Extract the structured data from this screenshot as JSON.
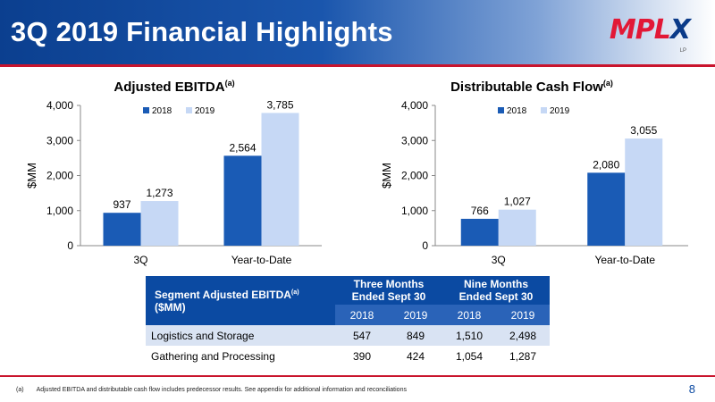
{
  "header": {
    "title": "3Q 2019 Financial Highlights",
    "logo_text_red": "MPL",
    "logo_text_blue": "X",
    "logo_sub": "LP"
  },
  "colors": {
    "series_2018": "#1a5bb5",
    "series_2019": "#c6d8f5",
    "accent_red": "#c9142d",
    "header_blue": "#0b3f8f"
  },
  "chart_data": [
    {
      "type": "bar",
      "title": "Adjusted EBITDA",
      "title_sup": "(a)",
      "ylabel": "$MM",
      "xlabel": "",
      "ylim": [
        0,
        4000
      ],
      "yticks": [
        "0",
        "1,000",
        "2,000",
        "3,000",
        "4,000"
      ],
      "ytick_values": [
        0,
        1000,
        2000,
        3000,
        4000
      ],
      "categories": [
        "3Q",
        "Year-to-Date"
      ],
      "legend_position": "top-left",
      "grid": false,
      "series": [
        {
          "name": "2018",
          "values": [
            937,
            2564
          ],
          "labels": [
            "937",
            "2,564"
          ]
        },
        {
          "name": "2019",
          "values": [
            1273,
            3785
          ],
          "labels": [
            "1,273",
            "3,785"
          ]
        }
      ]
    },
    {
      "type": "bar",
      "title": "Distributable Cash Flow",
      "title_sup": "(a)",
      "ylabel": "$MM",
      "xlabel": "",
      "ylim": [
        0,
        4000
      ],
      "yticks": [
        "0",
        "1,000",
        "2,000",
        "3,000",
        "4,000"
      ],
      "ytick_values": [
        0,
        1000,
        2000,
        3000,
        4000
      ],
      "categories": [
        "3Q",
        "Year-to-Date"
      ],
      "legend_position": "top-left",
      "grid": false,
      "series": [
        {
          "name": "2018",
          "values": [
            766,
            2080
          ],
          "labels": [
            "766",
            "2,080"
          ]
        },
        {
          "name": "2019",
          "values": [
            1027,
            3055
          ],
          "labels": [
            "1,027",
            "3,055"
          ]
        }
      ]
    }
  ],
  "table": {
    "title": "Segment Adjusted EBITDA",
    "title_sup": "(a)",
    "title_suffix": " ($MM)",
    "group_headers": [
      "Three Months Ended Sept 30",
      "Nine Months Ended Sept 30"
    ],
    "years": [
      "2018",
      "2019",
      "2018",
      "2019"
    ],
    "rows": [
      {
        "label": "Logistics and Storage",
        "values": [
          "547",
          "849",
          "1,510",
          "2,498"
        ]
      },
      {
        "label": "Gathering and Processing",
        "values": [
          "390",
          "424",
          "1,054",
          "1,287"
        ]
      }
    ]
  },
  "footer": {
    "mark": "(a)",
    "note": "Adjusted EBITDA and distributable cash flow includes predecessor results. See appendix for additional information and reconciliations",
    "page": "8"
  }
}
